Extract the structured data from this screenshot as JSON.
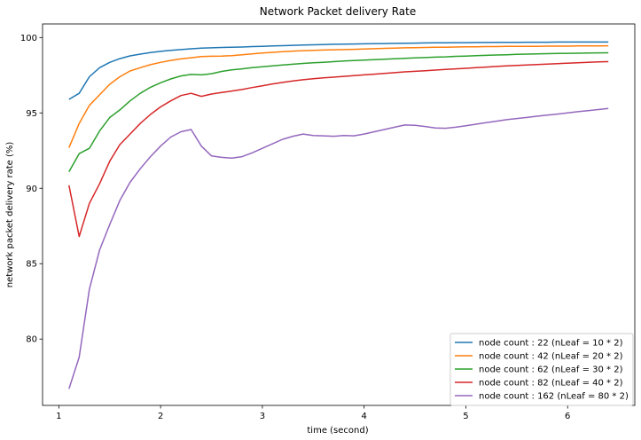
{
  "chart_data": {
    "type": "line",
    "title": "Network Packet delivery Rate",
    "xlabel": "time (second)",
    "ylabel": "network packet delivery rate (%)",
    "xlim": [
      0.84,
      6.66
    ],
    "ylim": [
      75.6,
      100.9
    ],
    "xticks": [
      1,
      2,
      3,
      4,
      5,
      6
    ],
    "yticks": [
      80,
      85,
      90,
      95,
      100
    ],
    "grid": false,
    "legend_position": "lower-right",
    "x": [
      1.1,
      1.2,
      1.3,
      1.4,
      1.5,
      1.6,
      1.7,
      1.8,
      1.9,
      2.0,
      2.1,
      2.2,
      2.3,
      2.4,
      2.5,
      2.6,
      2.7,
      2.8,
      2.9,
      3.0,
      3.1,
      3.2,
      3.3,
      3.4,
      3.5,
      3.6,
      3.7,
      3.8,
      3.9,
      4.0,
      4.1,
      4.2,
      4.3,
      4.4,
      4.5,
      4.6,
      4.7,
      4.8,
      4.9,
      5.0,
      5.1,
      5.2,
      5.3,
      5.4,
      5.5,
      5.6,
      5.7,
      5.8,
      5.9,
      6.0,
      6.1,
      6.2,
      6.3,
      6.4
    ],
    "series": [
      {
        "name": "node count : 22 (nLeaf = 10 * 2)",
        "color": "#1f77b4",
        "values": [
          95.9,
          96.3,
          97.4,
          98.0,
          98.35,
          98.6,
          98.78,
          98.9,
          99.0,
          99.08,
          99.15,
          99.2,
          99.25,
          99.3,
          99.32,
          99.34,
          99.35,
          99.37,
          99.4,
          99.42,
          99.44,
          99.46,
          99.48,
          99.5,
          99.52,
          99.53,
          99.55,
          99.56,
          99.57,
          99.58,
          99.59,
          99.6,
          99.61,
          99.62,
          99.63,
          99.64,
          99.65,
          99.65,
          99.66,
          99.66,
          99.67,
          99.67,
          99.68,
          99.68,
          99.68,
          99.69,
          99.69,
          99.69,
          99.7,
          99.7,
          99.7,
          99.7,
          99.7,
          99.7
        ]
      },
      {
        "name": "node count : 42 (nLeaf = 20 * 2)",
        "color": "#ff7f0e",
        "values": [
          92.7,
          94.3,
          95.5,
          96.2,
          96.9,
          97.4,
          97.78,
          98.0,
          98.2,
          98.35,
          98.48,
          98.58,
          98.66,
          98.74,
          98.76,
          98.77,
          98.8,
          98.86,
          98.92,
          98.97,
          99.02,
          99.06,
          99.1,
          99.13,
          99.15,
          99.17,
          99.19,
          99.2,
          99.22,
          99.24,
          99.26,
          99.28,
          99.3,
          99.32,
          99.33,
          99.34,
          99.35,
          99.36,
          99.37,
          99.38,
          99.39,
          99.4,
          99.4,
          99.41,
          99.41,
          99.42,
          99.42,
          99.43,
          99.43,
          99.43,
          99.44,
          99.44,
          99.44,
          99.45
        ]
      },
      {
        "name": "node count : 62 (nLeaf = 30 * 2)",
        "color": "#2ca02c",
        "values": [
          91.1,
          92.3,
          92.65,
          93.8,
          94.7,
          95.2,
          95.8,
          96.3,
          96.7,
          97.0,
          97.25,
          97.45,
          97.55,
          97.52,
          97.6,
          97.75,
          97.85,
          97.92,
          98.0,
          98.06,
          98.12,
          98.18,
          98.23,
          98.28,
          98.32,
          98.36,
          98.4,
          98.44,
          98.47,
          98.5,
          98.53,
          98.56,
          98.59,
          98.62,
          98.65,
          98.67,
          98.7,
          98.72,
          98.75,
          98.77,
          98.8,
          98.82,
          98.84,
          98.86,
          98.88,
          98.9,
          98.92,
          98.93,
          98.94,
          98.95,
          98.96,
          98.97,
          98.98,
          98.99
        ]
      },
      {
        "name": "node count : 82 (nLeaf = 40 * 2)",
        "color": "#d62728",
        "values": [
          90.2,
          86.8,
          89.0,
          90.3,
          91.8,
          92.9,
          93.6,
          94.3,
          94.9,
          95.4,
          95.8,
          96.15,
          96.3,
          96.1,
          96.25,
          96.35,
          96.45,
          96.55,
          96.68,
          96.8,
          96.92,
          97.02,
          97.12,
          97.2,
          97.27,
          97.32,
          97.37,
          97.42,
          97.47,
          97.52,
          97.57,
          97.62,
          97.67,
          97.72,
          97.76,
          97.8,
          97.84,
          97.88,
          97.92,
          97.96,
          98.0,
          98.04,
          98.08,
          98.12,
          98.15,
          98.18,
          98.21,
          98.24,
          98.27,
          98.3,
          98.33,
          98.36,
          98.38,
          98.4
        ]
      },
      {
        "name": "node count : 162 (nLeaf = 80 * 2)",
        "color": "#9467bd",
        "values": [
          76.7,
          78.8,
          83.3,
          85.9,
          87.6,
          89.2,
          90.4,
          91.3,
          92.1,
          92.8,
          93.4,
          93.75,
          93.9,
          92.8,
          92.15,
          92.05,
          92.0,
          92.1,
          92.35,
          92.65,
          92.95,
          93.25,
          93.45,
          93.6,
          93.5,
          93.48,
          93.45,
          93.5,
          93.48,
          93.6,
          93.75,
          93.9,
          94.05,
          94.2,
          94.18,
          94.1,
          94.0,
          93.98,
          94.05,
          94.15,
          94.25,
          94.35,
          94.45,
          94.55,
          94.63,
          94.7,
          94.78,
          94.85,
          94.92,
          95.0,
          95.08,
          95.15,
          95.22,
          95.3
        ]
      }
    ]
  }
}
